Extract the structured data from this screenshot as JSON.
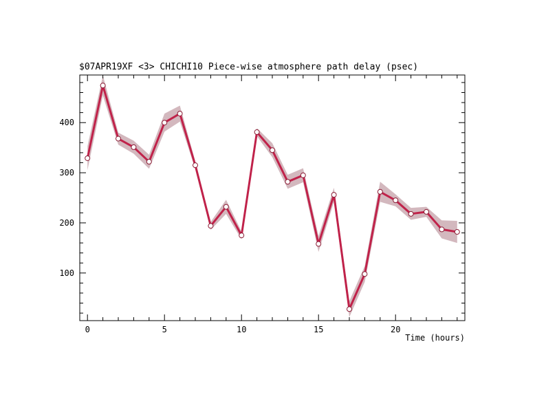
{
  "chart_data": {
    "type": "line",
    "title": "$07APR19XF <3>  CHICHI10  Piece-wise atmosphere path delay (psec)",
    "xlabel": "Time (hours)",
    "ylabel": "",
    "xlim": [
      -0.5,
      24.5
    ],
    "ylim": [
      5,
      495
    ],
    "x_ticks": [
      0,
      5,
      10,
      15,
      20
    ],
    "y_ticks": [
      100,
      200,
      300,
      400
    ],
    "grid": false,
    "colors": {
      "line": "#c0224a",
      "band": "#d3b8be",
      "marker_fill": "#ffffff",
      "marker_edge": "#8a1a33"
    },
    "series": [
      {
        "x": [
          0,
          1,
          2,
          3,
          4,
          5,
          6,
          7,
          8,
          9,
          10,
          11,
          12,
          13,
          14,
          15,
          16,
          17,
          18,
          19,
          20,
          21,
          22,
          23,
          24
        ],
        "y": [
          329,
          474,
          368,
          351,
          322,
          400,
          418,
          315,
          194,
          232,
          175,
          381,
          345,
          282,
          295,
          158,
          256,
          28,
          98,
          262,
          245,
          218,
          222,
          187,
          182
        ],
        "err": [
          24,
          20,
          12,
          13,
          14,
          18,
          16,
          8,
          8,
          14,
          8,
          8,
          14,
          14,
          14,
          16,
          14,
          16,
          16,
          20,
          12,
          12,
          10,
          18,
          22
        ]
      }
    ]
  }
}
